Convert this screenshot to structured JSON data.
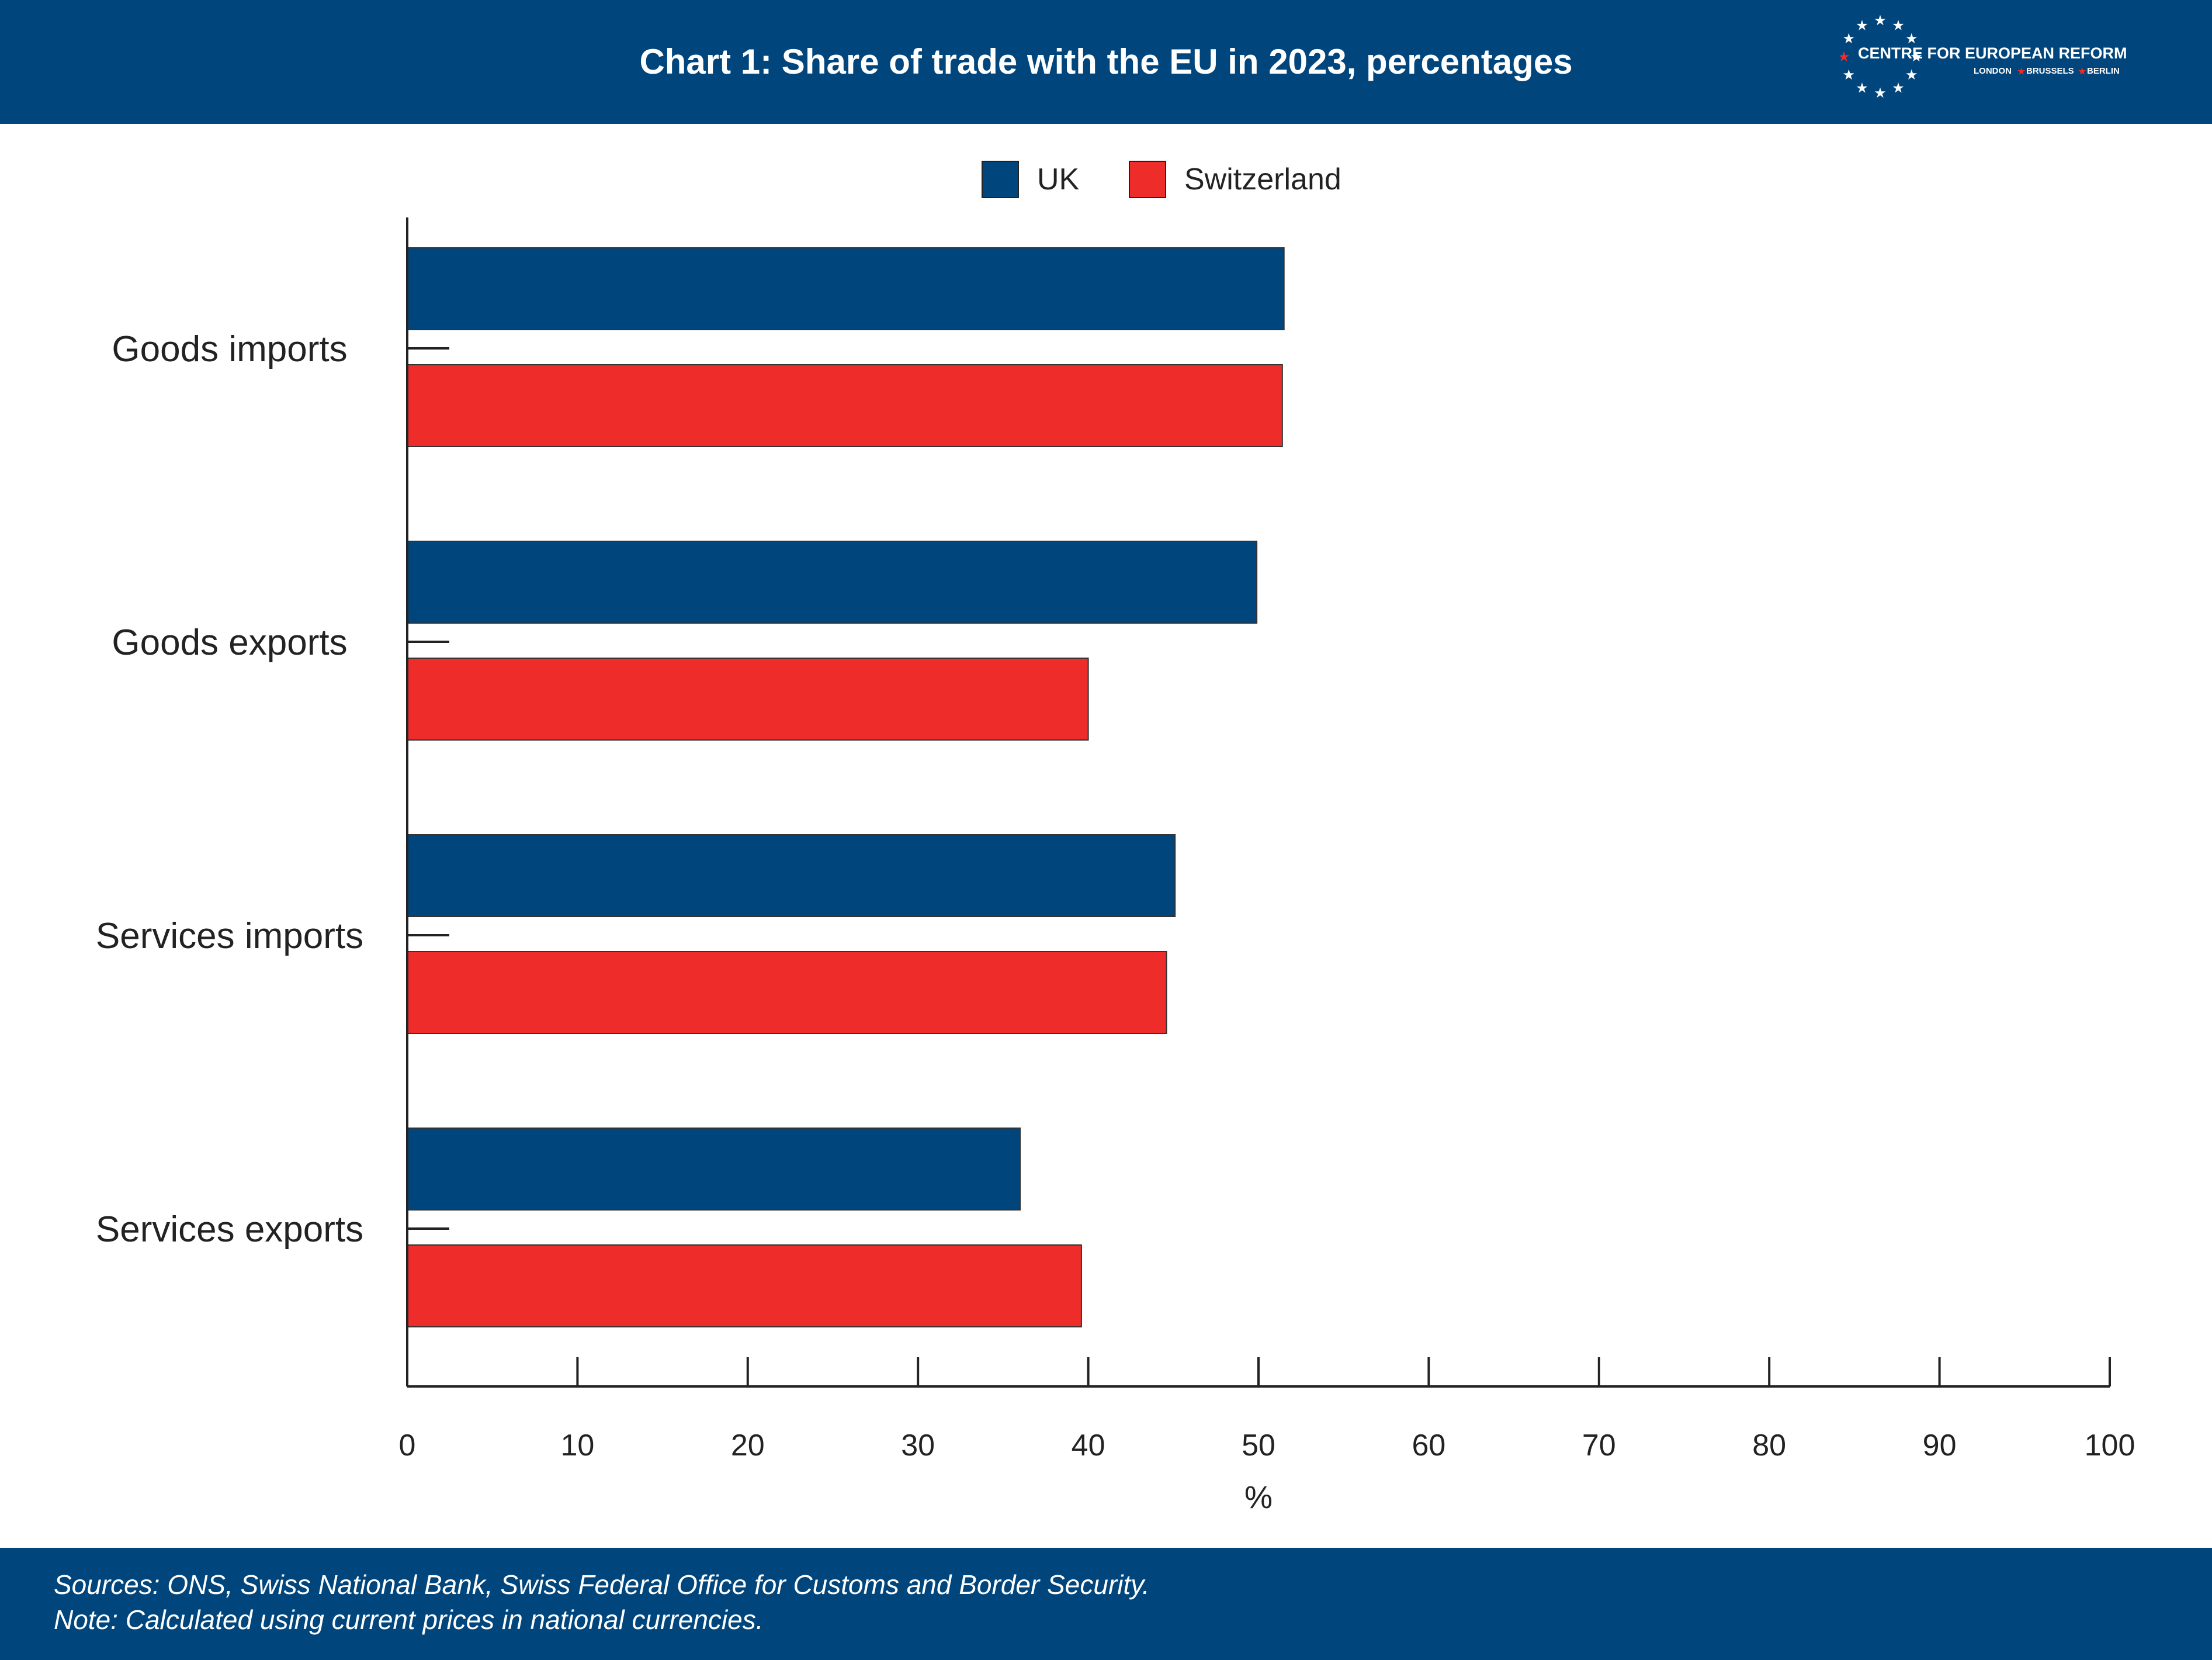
{
  "header": {
    "title": "Chart 1: Share of trade with the EU in 2023, percentages",
    "logo_name": "CENTRE FOR EUROPEAN REFORM",
    "logo_cities": [
      "LONDON",
      "BRUSSELS",
      "BERLIN"
    ],
    "background_color": "#00457c"
  },
  "chart_data": {
    "type": "bar",
    "orientation": "horizontal",
    "categories": [
      "Goods imports",
      "Goods exports",
      "Services imports",
      "Services exports"
    ],
    "series": [
      {
        "name": "UK",
        "color": "#00457c",
        "values": [
          51.5,
          49.9,
          45.1,
          36.0
        ]
      },
      {
        "name": "Switzerland",
        "color": "#ee2d2a",
        "values": [
          51.4,
          40.0,
          44.6,
          39.6
        ]
      }
    ],
    "xlim": [
      0,
      100
    ],
    "xticks": [
      0,
      10,
      20,
      30,
      40,
      50,
      60,
      70,
      80,
      90,
      100
    ],
    "xlabel": "%",
    "ylabel": "",
    "grid": false,
    "legend_position": "top-center"
  },
  "footer": {
    "sources": "Sources: ONS, Swiss National Bank, Swiss Federal Office for Customs and Border Security.",
    "note": "Note: Calculated using current prices in national currencies."
  }
}
